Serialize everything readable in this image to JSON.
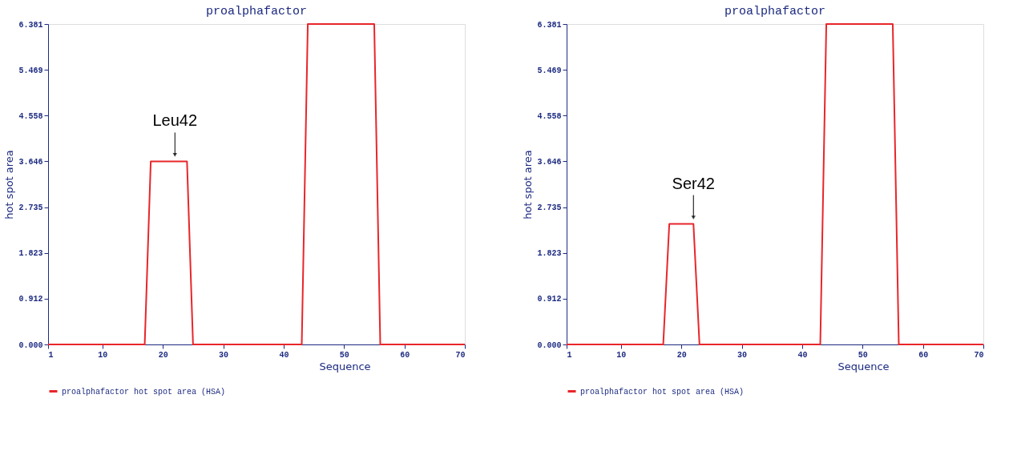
{
  "chart_data": [
    {
      "type": "line",
      "title": "proalphafactor",
      "xlabel": "Sequence",
      "ylabel": "hot spot area",
      "x": [
        1,
        17,
        18,
        24,
        25,
        43,
        44,
        55,
        56,
        70
      ],
      "series": [
        {
          "name": "proalphafactor hot spot area (HSA)",
          "color": "#e8262a",
          "values": [
            0,
            0,
            3.646,
            3.646,
            0,
            0,
            6.381,
            6.381,
            0,
            0
          ]
        }
      ],
      "xlim": [
        1,
        70
      ],
      "ylim": [
        0,
        6.381
      ],
      "xticks": [
        1,
        10,
        20,
        30,
        40,
        50,
        60,
        70
      ],
      "yticks": [
        {
          "value": 0,
          "label": "0.000"
        },
        0.912,
        1.823,
        2.735,
        3.646,
        4.558,
        5.469,
        6.381
      ],
      "annotations": [
        {
          "text": "Leu42",
          "x": 22,
          "y": 3.646
        }
      ],
      "grid": false,
      "legend": "bottom",
      "marker": "none",
      "line_style": "solid"
    },
    {
      "type": "line",
      "title": "proalphafactor",
      "xlabel": "Sequence",
      "ylabel": "hot spot area",
      "x": [
        1,
        17,
        18,
        22,
        23,
        43,
        44,
        55,
        56,
        70
      ],
      "series": [
        {
          "name": "proalphafactor hot spot area (HSA)",
          "color": "#e8262a",
          "values": [
            0,
            0,
            2.4,
            2.4,
            0,
            0,
            6.381,
            6.381,
            0,
            0
          ]
        }
      ],
      "xlim": [
        1,
        70
      ],
      "ylim": [
        0,
        6.381
      ],
      "xticks": [
        1,
        10,
        20,
        30,
        40,
        50,
        60,
        70
      ],
      "yticks": [
        {
          "value": 0,
          "label": "0.000"
        },
        0.912,
        1.823,
        2.735,
        3.646,
        4.558,
        5.469,
        6.381
      ],
      "annotations": [
        {
          "text": "Ser42",
          "x": 22,
          "y": 2.4
        }
      ],
      "grid": false,
      "legend": "bottom",
      "marker": "none",
      "line_style": "solid"
    }
  ]
}
